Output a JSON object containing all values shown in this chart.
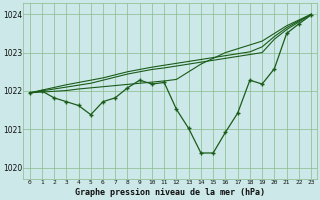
{
  "title": "Graphe pression niveau de la mer (hPa)",
  "background_color": "#cce8e8",
  "grid_color": "#88bb88",
  "line_color": "#1a5c1a",
  "x_labels": [
    "0",
    "1",
    "2",
    "3",
    "4",
    "5",
    "6",
    "7",
    "8",
    "9",
    "10",
    "11",
    "12",
    "13",
    "14",
    "15",
    "16",
    "17",
    "18",
    "19",
    "20",
    "21",
    "22",
    "23"
  ],
  "ylim": [
    1019.7,
    1024.3
  ],
  "yticks": [
    1020,
    1021,
    1022,
    1023,
    1024
  ],
  "main_line": [
    1021.95,
    1022.0,
    1021.82,
    1021.72,
    1021.62,
    1021.38,
    1021.72,
    1021.82,
    1022.08,
    1022.28,
    1022.18,
    1022.22,
    1021.52,
    1021.02,
    1020.38,
    1020.38,
    1020.92,
    1021.42,
    1022.28,
    1022.18,
    1022.58,
    1023.5,
    1023.75,
    1023.98
  ],
  "trend_line1": [
    1021.95,
    1021.97,
    1021.99,
    1022.01,
    1022.05,
    1022.08,
    1022.11,
    1022.14,
    1022.17,
    1022.2,
    1022.23,
    1022.26,
    1022.3,
    1022.5,
    1022.7,
    1022.85,
    1023.0,
    1023.1,
    1023.2,
    1023.3,
    1023.5,
    1023.7,
    1023.85,
    1024.0
  ],
  "trend_line2": [
    1021.95,
    1022.0,
    1022.05,
    1022.1,
    1022.15,
    1022.2,
    1022.28,
    1022.36,
    1022.44,
    1022.5,
    1022.56,
    1022.6,
    1022.65,
    1022.7,
    1022.75,
    1022.8,
    1022.85,
    1022.9,
    1022.95,
    1023.0,
    1023.35,
    1023.6,
    1023.8,
    1024.0
  ],
  "trend_line3": [
    1021.95,
    1022.02,
    1022.09,
    1022.16,
    1022.22,
    1022.28,
    1022.34,
    1022.42,
    1022.5,
    1022.56,
    1022.62,
    1022.67,
    1022.72,
    1022.77,
    1022.82,
    1022.87,
    1022.92,
    1022.97,
    1023.02,
    1023.15,
    1023.42,
    1023.65,
    1023.83,
    1024.0
  ]
}
